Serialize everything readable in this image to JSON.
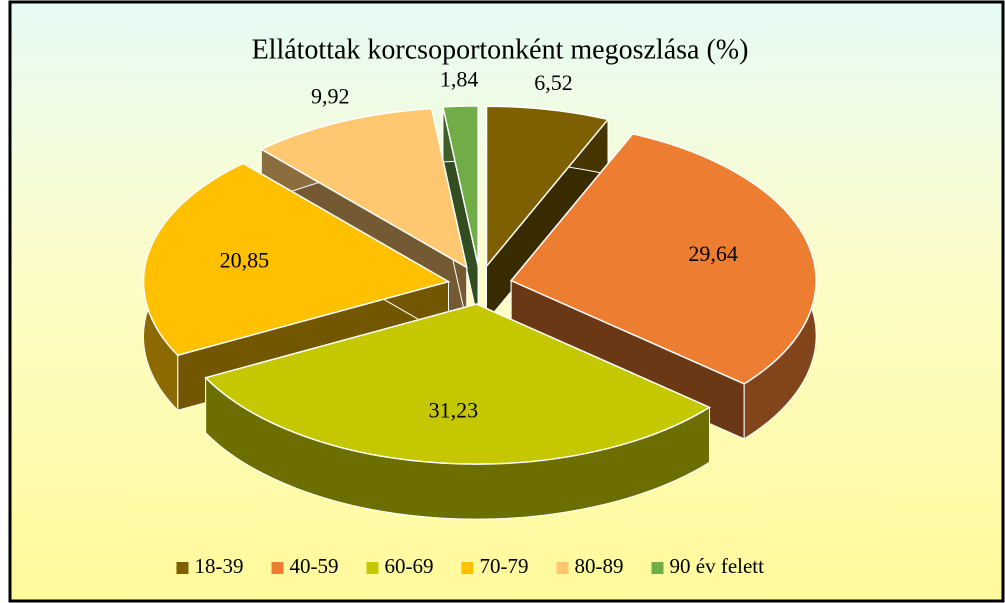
{
  "chart_data": {
    "type": "pie",
    "title": "Ellátottak korcsoportonként megoszlása (%)",
    "categories": [
      "18-39",
      "40-59",
      "60-69",
      "70-79",
      "80-89",
      "90 év felett"
    ],
    "values": [
      6.52,
      29.64,
      31.23,
      20.85,
      9.92,
      1.84
    ],
    "value_labels": [
      "6,52",
      "29,64",
      "31,23",
      "20,85",
      "9,92",
      "1,84"
    ],
    "colors": [
      "#7f6000",
      "#ed7d31",
      "#c5c800",
      "#ffc000",
      "#ffc870",
      "#70ad47"
    ],
    "legend": "bottom"
  }
}
